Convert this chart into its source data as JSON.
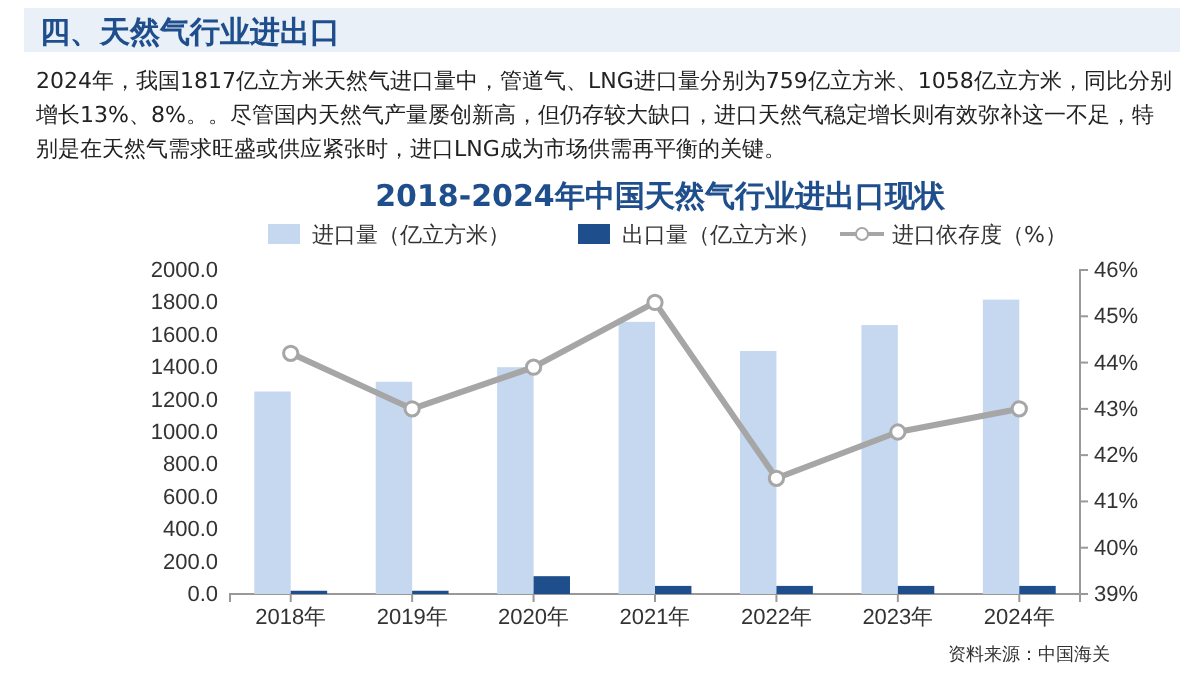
{
  "chart_data": {
    "type": "bar",
    "title": "2018-2024年中国天然气行业进出口现状",
    "annotations": [
      "四、天然气行业进出口",
      "2024年，我国1817亿立方米天然气进口量中，管道气、LNG进口量分别为759亿立方米、1058亿立方米，同比分别增长13%、8%。。尽管国内天然气产量屡创新高，但仍存较大缺口，进口天然气稳定增长则有效弥补这一不足，特别是在天然气需求旺盛或供应紧张时，进口LNG成为市场供需再平衡的关键。",
      "资料来源：中国海关"
    ],
    "categories": [
      "2018年",
      "2019年",
      "2020年",
      "2021年",
      "2022年",
      "2023年",
      "2024年"
    ],
    "series": [
      {
        "name": "进口量（亿立方米）",
        "color": "#c6d8f0",
        "values": [
          1250,
          1310,
          1400,
          1680,
          1500,
          1660,
          1817
        ]
      },
      {
        "name": "出口量（亿立方米）",
        "color": "#1f4e8c",
        "values": [
          20,
          20,
          110,
          50,
          50,
          50,
          50
        ]
      },
      {
        "name": "进口依存度（%）",
        "type": "line",
        "axis": "y2",
        "color": "#a6a6a6",
        "marker": "circle",
        "values": [
          44.2,
          43.0,
          43.9,
          45.3,
          41.5,
          42.5,
          43.0
        ]
      }
    ],
    "ylim": [
      0,
      2000
    ],
    "yticks": [
      {
        "value": 0,
        "label": "0.0"
      },
      {
        "value": 200,
        "label": "200.0"
      },
      {
        "value": 400,
        "label": "400.0"
      },
      {
        "value": 600,
        "label": "600.0"
      },
      {
        "value": 800,
        "label": "800.0"
      },
      {
        "value": 1000,
        "label": "1000.0"
      },
      {
        "value": 1200,
        "label": "1200.0"
      },
      {
        "value": 1400,
        "label": "1400.0"
      },
      {
        "value": 1600,
        "label": "1600.0"
      },
      {
        "value": 1800,
        "label": "1800.0"
      },
      {
        "value": 2000,
        "label": "2000.0"
      }
    ],
    "y2lim": [
      39,
      46
    ],
    "y2ticks": [
      {
        "value": 39,
        "label": "39%"
      },
      {
        "value": 40,
        "label": "40%"
      },
      {
        "value": 41,
        "label": "41%"
      },
      {
        "value": 42,
        "label": "42%"
      },
      {
        "value": 43,
        "label": "43%"
      },
      {
        "value": 44,
        "label": "44%"
      },
      {
        "value": 45,
        "label": "45%"
      },
      {
        "value": 46,
        "label": "46%"
      }
    ],
    "legend": "top",
    "grid": false
  }
}
